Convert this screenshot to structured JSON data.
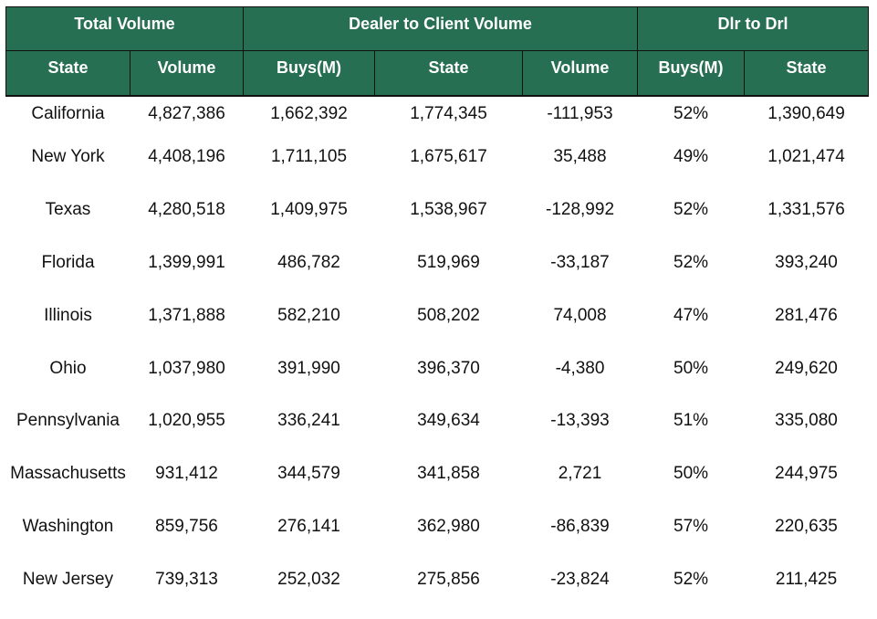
{
  "table": {
    "group_headers": [
      {
        "label": "Total Volume"
      },
      {
        "label": "Dealer to Client Volume"
      },
      {
        "label": "Dlr to Drl"
      }
    ],
    "columns": [
      "State",
      "Volume",
      "Buys(M)",
      "State",
      "Volume",
      "Buys(M)",
      "State"
    ],
    "rows": [
      [
        "California",
        "4,827,386",
        "1,662,392",
        "1,774,345",
        "-111,953",
        "52%",
        "1,390,649"
      ],
      [
        "New York",
        "4,408,196",
        "1,711,105",
        "1,675,617",
        "35,488",
        "49%",
        "1,021,474"
      ],
      [
        "Texas",
        "4,280,518",
        "1,409,975",
        "1,538,967",
        "-128,992",
        "52%",
        "1,331,576"
      ],
      [
        "Florida",
        "1,399,991",
        "486,782",
        "519,969",
        "-33,187",
        "52%",
        "393,240"
      ],
      [
        "Illinois",
        "1,371,888",
        "582,210",
        "508,202",
        "74,008",
        "47%",
        "281,476"
      ],
      [
        "Ohio",
        "1,037,980",
        "391,990",
        "396,370",
        "-4,380",
        "50%",
        "249,620"
      ],
      [
        "Pennsylvania",
        "1,020,955",
        "336,241",
        "349,634",
        "-13,393",
        "51%",
        "335,080"
      ],
      [
        "Massachusetts",
        "931,412",
        "344,579",
        "341,858",
        "2,721",
        "50%",
        "244,975"
      ],
      [
        "Washington",
        "859,756",
        "276,141",
        "362,980",
        "-86,839",
        "57%",
        "220,635"
      ],
      [
        "New Jersey",
        "739,313",
        "252,032",
        "275,856",
        "-23,824",
        "52%",
        "211,425"
      ]
    ]
  }
}
